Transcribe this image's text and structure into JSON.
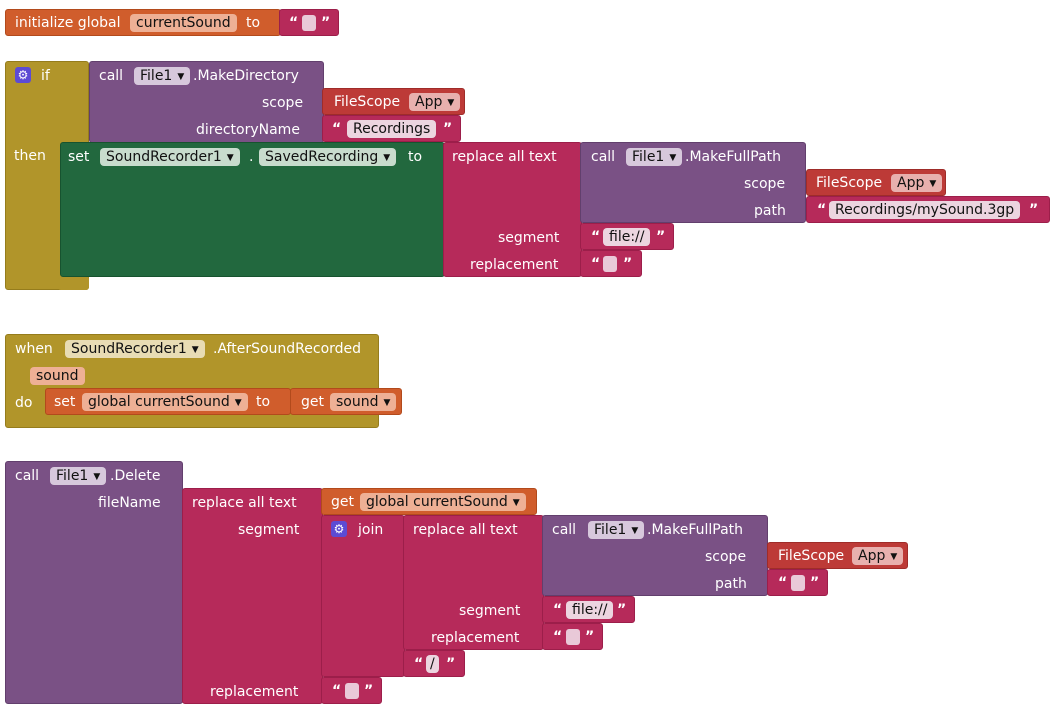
{
  "colors": {
    "variables": "#d05d2c",
    "text": "#b62a5a",
    "control": "#b1952a",
    "file_component": "#7a5185",
    "filescope": "#bd3a37",
    "sound_recorder": "#22683e",
    "mutator_icon": "#5c4bd4"
  },
  "quote_open": "“",
  "quote_close": "”",
  "icons": {
    "mutator": "gear-icon",
    "dropdown": "triangle-down-icon"
  },
  "block_init": {
    "label": "initialize global",
    "var_name": "currentSound",
    "to": "to"
  },
  "block_if": {
    "if": "if",
    "then": "then",
    "call": "call",
    "component": "File1",
    "method": ".MakeDirectory",
    "scope_label": "scope",
    "filescope": "FileScope",
    "scope_value": "App",
    "directory_label": "directoryName",
    "directory_value": "Recordings",
    "set": "set",
    "recorder": "SoundRecorder1",
    "dot": ".",
    "property": "SavedRecording",
    "to": "to",
    "replace_all_text": "replace all text",
    "call2": "call",
    "component2": "File1",
    "method2": ".MakeFullPath",
    "scope2_label": "scope",
    "filescope2": "FileScope",
    "scope2_value": "App",
    "path_label": "path",
    "path_value": "Recordings/mySound.3gp",
    "segment_label": "segment",
    "segment_value": "file://",
    "replacement_label": "replacement"
  },
  "block_when": {
    "when": "when",
    "component": "SoundRecorder1",
    "event": ".AfterSoundRecorded",
    "param": "sound",
    "do": "do",
    "set": "set",
    "var": "global currentSound",
    "to": "to",
    "get": "get",
    "get_var": "sound"
  },
  "block_delete": {
    "call": "call",
    "component": "File1",
    "method": ".Delete",
    "filename_label": "fileName",
    "replace_all_text": "replace all text",
    "get": "get",
    "get_var": "global currentSound",
    "segment_label": "segment",
    "join": "join",
    "replace_all_text2": "replace all text",
    "call2": "call",
    "component2": "File1",
    "method2": ".MakeFullPath",
    "scope_label": "scope",
    "filescope": "FileScope",
    "scope_value": "App",
    "path_label": "path",
    "segment2_label": "segment",
    "segment2_value": "file://",
    "replacement2_label": "replacement",
    "slash_value": "/",
    "replacement_label": "replacement"
  }
}
